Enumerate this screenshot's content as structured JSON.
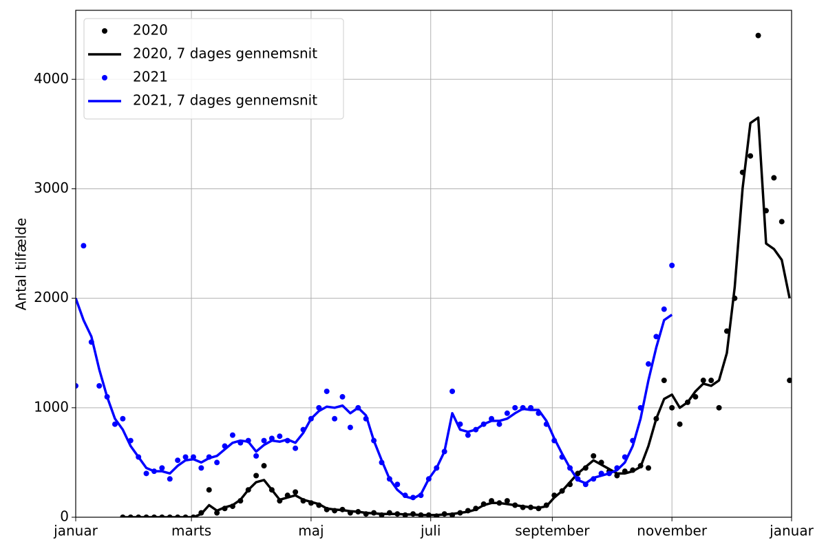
{
  "chart_data": {
    "type": "line",
    "ylabel": "Antal tilfælde",
    "xlim": [
      0,
      365
    ],
    "ylim": [
      0,
      4630
    ],
    "xticks": [
      {
        "value": 0,
        "label": "januar"
      },
      {
        "value": 59,
        "label": "marts"
      },
      {
        "value": 120,
        "label": "maj"
      },
      {
        "value": 181,
        "label": "juli"
      },
      {
        "value": 243,
        "label": "september"
      },
      {
        "value": 304,
        "label": "november"
      },
      {
        "value": 365,
        "label": "januar"
      }
    ],
    "yticks": [
      0,
      1000,
      2000,
      3000,
      4000
    ],
    "grid": true,
    "legend": "upper left",
    "series": [
      {
        "name": "2020",
        "color": "#000000",
        "mode": "markers",
        "x": [
          24,
          28,
          32,
          36,
          40,
          44,
          48,
          52,
          56,
          60,
          64,
          68,
          72,
          76,
          80,
          84,
          88,
          92,
          96,
          100,
          104,
          108,
          112,
          116,
          120,
          124,
          128,
          132,
          136,
          140,
          144,
          148,
          152,
          156,
          160,
          164,
          168,
          172,
          176,
          180,
          184,
          188,
          192,
          196,
          200,
          204,
          208,
          212,
          216,
          220,
          224,
          228,
          232,
          236,
          240,
          244,
          248,
          252,
          256,
          260,
          264,
          268,
          272,
          276,
          280,
          284,
          288,
          292,
          296,
          300,
          304,
          308,
          312,
          316,
          320,
          324,
          328,
          332,
          336,
          340,
          344,
          348,
          352,
          356,
          360,
          364
        ],
        "values": [
          0,
          0,
          0,
          0,
          0,
          0,
          0,
          0,
          0,
          0,
          40,
          250,
          40,
          80,
          100,
          150,
          250,
          380,
          470,
          250,
          150,
          200,
          230,
          150,
          130,
          110,
          70,
          60,
          70,
          40,
          50,
          30,
          40,
          20,
          40,
          30,
          20,
          30,
          20,
          20,
          10,
          30,
          20,
          40,
          60,
          80,
          120,
          150,
          130,
          150,
          110,
          90,
          90,
          80,
          110,
          200,
          240,
          300,
          400,
          450,
          560,
          500,
          420,
          380,
          420,
          430,
          470,
          450,
          900,
          1250,
          1000,
          850,
          1050,
          1100,
          1250,
          1250,
          1000,
          1700,
          2000,
          3150,
          3300,
          4400,
          2800,
          3100,
          2700,
          1250
        ]
      },
      {
        "name": "2020, 7 dages gennemsnit",
        "color": "#000000",
        "mode": "line",
        "x": [
          24,
          28,
          32,
          36,
          40,
          44,
          48,
          52,
          56,
          60,
          64,
          68,
          72,
          76,
          80,
          84,
          88,
          92,
          96,
          100,
          104,
          108,
          112,
          116,
          120,
          124,
          128,
          132,
          136,
          140,
          144,
          148,
          152,
          156,
          160,
          164,
          168,
          172,
          176,
          180,
          184,
          188,
          192,
          196,
          200,
          204,
          208,
          212,
          216,
          220,
          224,
          228,
          232,
          236,
          240,
          244,
          248,
          252,
          256,
          260,
          264,
          268,
          272,
          276,
          280,
          284,
          288,
          292,
          296,
          300,
          304,
          308,
          312,
          316,
          320,
          324,
          328,
          332,
          336,
          340,
          344,
          348,
          352,
          356,
          360,
          364
        ],
        "values": [
          0,
          0,
          0,
          0,
          0,
          0,
          0,
          0,
          0,
          0,
          30,
          110,
          60,
          90,
          110,
          160,
          250,
          320,
          340,
          250,
          160,
          180,
          200,
          160,
          140,
          120,
          80,
          70,
          65,
          55,
          50,
          40,
          35,
          30,
          30,
          30,
          25,
          25,
          20,
          20,
          20,
          25,
          30,
          40,
          50,
          70,
          110,
          130,
          130,
          120,
          110,
          100,
          90,
          85,
          100,
          180,
          240,
          320,
          400,
          460,
          520,
          480,
          440,
          400,
          400,
          420,
          460,
          650,
          900,
          1080,
          1120,
          1000,
          1050,
          1150,
          1220,
          1200,
          1250,
          1500,
          2100,
          3000,
          3600,
          3650,
          2500,
          2450,
          2350,
          2000
        ]
      },
      {
        "name": "2021",
        "color": "#0000ff",
        "mode": "markers",
        "x": [
          0,
          4,
          8,
          12,
          16,
          20,
          24,
          28,
          32,
          36,
          40,
          44,
          48,
          52,
          56,
          60,
          64,
          68,
          72,
          76,
          80,
          84,
          88,
          92,
          96,
          100,
          104,
          108,
          112,
          116,
          120,
          124,
          128,
          132,
          136,
          140,
          144,
          148,
          152,
          156,
          160,
          164,
          168,
          172,
          176,
          180,
          184,
          188,
          192,
          196,
          200,
          204,
          208,
          212,
          216,
          220,
          224,
          228,
          232,
          236,
          240,
          244,
          248,
          252,
          256,
          260,
          264,
          268,
          272,
          276,
          280,
          284,
          288,
          292,
          296,
          300,
          304
        ],
        "values": [
          1200,
          2480,
          1600,
          1200,
          1100,
          850,
          900,
          700,
          550,
          400,
          420,
          450,
          350,
          520,
          550,
          550,
          450,
          550,
          500,
          650,
          750,
          680,
          700,
          560,
          700,
          720,
          740,
          700,
          630,
          800,
          900,
          1000,
          1150,
          900,
          1100,
          820,
          1000,
          900,
          700,
          500,
          350,
          300,
          200,
          180,
          200,
          350,
          450,
          600,
          1150,
          850,
          750,
          800,
          850,
          900,
          850,
          950,
          1000,
          1000,
          1000,
          950,
          850,
          700,
          550,
          450,
          350,
          300,
          350,
          400,
          400,
          450,
          550,
          700,
          1000,
          1400,
          1650,
          1900,
          2300
        ]
      },
      {
        "name": "2021, 7 dages gennemsnit",
        "color": "#0000ff",
        "mode": "line",
        "x": [
          0,
          4,
          8,
          12,
          16,
          20,
          24,
          28,
          32,
          36,
          40,
          44,
          48,
          52,
          56,
          60,
          64,
          68,
          72,
          76,
          80,
          84,
          88,
          92,
          96,
          100,
          104,
          108,
          112,
          116,
          120,
          124,
          128,
          132,
          136,
          140,
          144,
          148,
          152,
          156,
          160,
          164,
          168,
          172,
          176,
          180,
          184,
          188,
          192,
          196,
          200,
          204,
          208,
          212,
          216,
          220,
          224,
          228,
          232,
          236,
          240,
          244,
          248,
          252,
          256,
          260,
          264,
          268,
          272,
          276,
          280,
          284,
          288,
          292,
          296,
          300,
          304
        ],
        "values": [
          2000,
          1800,
          1650,
          1350,
          1100,
          900,
          800,
          650,
          550,
          450,
          420,
          420,
          400,
          470,
          520,
          530,
          500,
          540,
          560,
          620,
          680,
          700,
          690,
          600,
          660,
          700,
          690,
          710,
          680,
          770,
          900,
          970,
          1010,
          1000,
          1020,
          950,
          1000,
          930,
          700,
          520,
          350,
          250,
          190,
          170,
          210,
          350,
          450,
          600,
          950,
          800,
          780,
          800,
          850,
          880,
          880,
          900,
          950,
          990,
          980,
          980,
          880,
          720,
          580,
          450,
          340,
          310,
          360,
          380,
          400,
          430,
          500,
          650,
          900,
          1250,
          1550,
          1800,
          1850
        ]
      }
    ]
  }
}
